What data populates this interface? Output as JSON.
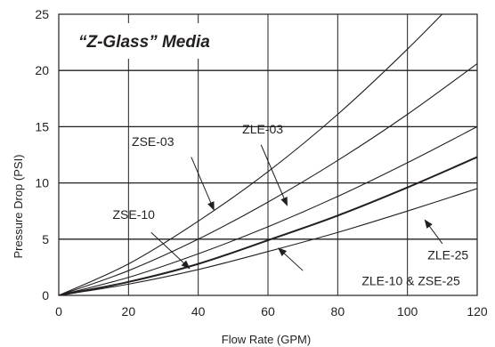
{
  "chart_data": {
    "type": "line",
    "title": "“Z-Glass” Media",
    "xlabel": "Flow Rate (GPM)",
    "ylabel": "Pressure Drop (PSI)",
    "xlim": [
      0,
      120
    ],
    "ylim": [
      0,
      25
    ],
    "xticks": [
      0,
      20,
      40,
      60,
      80,
      100,
      120
    ],
    "yticks": [
      0,
      5,
      10,
      15,
      20,
      25
    ],
    "xtick_labels": [
      "0",
      "20",
      "40",
      "60",
      "80",
      "100",
      "120"
    ],
    "ytick_labels": [
      "0",
      "5",
      "10",
      "15",
      "20",
      "25"
    ],
    "grid": true,
    "line_color": "#231f20",
    "series": [
      {
        "name": "ZSE-03",
        "x": [
          0,
          20,
          40,
          60,
          80,
          100,
          120
        ],
        "y": [
          0,
          2.8,
          6.6,
          11.0,
          16.1,
          21.9,
          28.2
        ]
      },
      {
        "name": "ZLE-03",
        "x": [
          0,
          20,
          40,
          60,
          80,
          100,
          120
        ],
        "y": [
          0,
          2.2,
          5.0,
          8.3,
          12.0,
          16.1,
          20.6
        ]
      },
      {
        "name": "ZSE-10",
        "x": [
          0,
          20,
          40,
          60,
          80,
          100,
          120
        ],
        "y": [
          0,
          1.6,
          3.7,
          6.1,
          8.8,
          11.8,
          15.0
        ]
      },
      {
        "name": "ZLE-10 & ZSE-25",
        "x": [
          0,
          20,
          40,
          60,
          80,
          100,
          120
        ],
        "y": [
          0,
          1.2,
          2.8,
          4.9,
          7.1,
          9.6,
          12.3
        ]
      },
      {
        "name": "ZLE-25",
        "x": [
          0,
          20,
          40,
          60,
          80,
          100,
          120
        ],
        "y": [
          0,
          1.0,
          2.3,
          3.9,
          5.6,
          7.5,
          9.5
        ]
      }
    ],
    "annotations": [
      {
        "text": "ZSE-03",
        "series": "ZSE-03"
      },
      {
        "text": "ZLE-03",
        "series": "ZLE-03"
      },
      {
        "text": "ZSE-10",
        "series": "ZSE-10"
      },
      {
        "text": "ZLE-10 & ZSE-25",
        "series": "ZLE-10 & ZSE-25"
      },
      {
        "text": "ZLE-25",
        "series": "ZLE-25"
      }
    ]
  }
}
